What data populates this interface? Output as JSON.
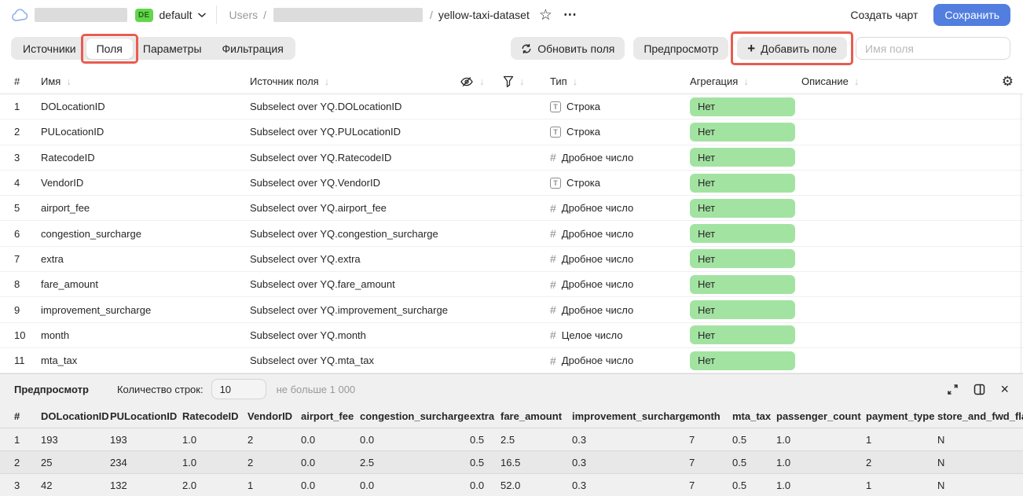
{
  "topbar": {
    "env_badge": "DE",
    "env_name": "default",
    "breadcrumb": {
      "root": "Users",
      "separator": "/",
      "current": "yellow-taxi-dataset"
    },
    "create_chart_label": "Создать чарт",
    "save_label": "Сохранить"
  },
  "toolbar": {
    "tabs": [
      {
        "label": "Источники",
        "active": false
      },
      {
        "label": "Поля",
        "active": true,
        "annotated": true
      },
      {
        "label": "Параметры",
        "active": false
      },
      {
        "label": "Фильтрация",
        "active": false
      }
    ],
    "refresh_label": "Обновить поля",
    "preview_label": "Предпросмотр",
    "add_field_label": "Добавить поле",
    "field_name_placeholder": "Имя поля"
  },
  "fields_table": {
    "columns": {
      "index": "#",
      "name": "Имя",
      "source": "Источник поля",
      "type": "Тип",
      "aggregation": "Агрегация",
      "description": "Описание"
    },
    "rows": [
      {
        "index": 1,
        "name": "DOLocationID",
        "source": "Subselect over YQ.DOLocationID",
        "type": "Строка",
        "type_kind": "string",
        "aggregation": "Нет"
      },
      {
        "index": 2,
        "name": "PULocationID",
        "source": "Subselect over YQ.PULocationID",
        "type": "Строка",
        "type_kind": "string",
        "aggregation": "Нет"
      },
      {
        "index": 3,
        "name": "RatecodeID",
        "source": "Subselect over YQ.RatecodeID",
        "type": "Дробное число",
        "type_kind": "number",
        "aggregation": "Нет"
      },
      {
        "index": 4,
        "name": "VendorID",
        "source": "Subselect over YQ.VendorID",
        "type": "Строка",
        "type_kind": "string",
        "aggregation": "Нет"
      },
      {
        "index": 5,
        "name": "airport_fee",
        "source": "Subselect over YQ.airport_fee",
        "type": "Дробное число",
        "type_kind": "number",
        "aggregation": "Нет"
      },
      {
        "index": 6,
        "name": "congestion_surcharge",
        "source": "Subselect over YQ.congestion_surcharge",
        "type": "Дробное число",
        "type_kind": "number",
        "aggregation": "Нет"
      },
      {
        "index": 7,
        "name": "extra",
        "source": "Subselect over YQ.extra",
        "type": "Дробное число",
        "type_kind": "number",
        "aggregation": "Нет"
      },
      {
        "index": 8,
        "name": "fare_amount",
        "source": "Subselect over YQ.fare_amount",
        "type": "Дробное число",
        "type_kind": "number",
        "aggregation": "Нет"
      },
      {
        "index": 9,
        "name": "improvement_surcharge",
        "source": "Subselect over YQ.improvement_surcharge",
        "type": "Дробное число",
        "type_kind": "number",
        "aggregation": "Нет"
      },
      {
        "index": 10,
        "name": "month",
        "source": "Subselect over YQ.month",
        "type": "Целое число",
        "type_kind": "number",
        "aggregation": "Нет"
      },
      {
        "index": 11,
        "name": "mta_tax",
        "source": "Subselect over YQ.mta_tax",
        "type": "Дробное число",
        "type_kind": "number",
        "aggregation": "Нет"
      }
    ]
  },
  "preview": {
    "title": "Предпросмотр",
    "row_count_label": "Количество строк:",
    "row_count_value": "10",
    "limit_hint": "не больше 1 000",
    "columns": [
      "#",
      "DOLocationID",
      "PULocationID",
      "RatecodeID",
      "VendorID",
      "airport_fee",
      "congestion_surcharge",
      "extra",
      "fare_amount",
      "improvement_surcharge",
      "month",
      "mta_tax",
      "passenger_count",
      "payment_type",
      "store_and_fwd_flag"
    ],
    "rows": [
      [
        "1",
        "193",
        "193",
        "1.0",
        "2",
        "0.0",
        "0.0",
        "0.5",
        "2.5",
        "0.3",
        "7",
        "0.5",
        "1.0",
        "1",
        "N"
      ],
      [
        "2",
        "25",
        "234",
        "1.0",
        "2",
        "0.0",
        "2.5",
        "0.5",
        "16.5",
        "0.3",
        "7",
        "0.5",
        "1.0",
        "2",
        "N"
      ],
      [
        "3",
        "42",
        "132",
        "2.0",
        "1",
        "0.0",
        "0.0",
        "0.0",
        "52.0",
        "0.3",
        "7",
        "0.5",
        "1.0",
        "1",
        "N"
      ]
    ]
  },
  "colors": {
    "accent_blue": "#527ee0",
    "env_badge_green": "#63d64d",
    "aggregation_badge_green": "#a2e3a2",
    "annotation_red": "#e95c4f"
  }
}
